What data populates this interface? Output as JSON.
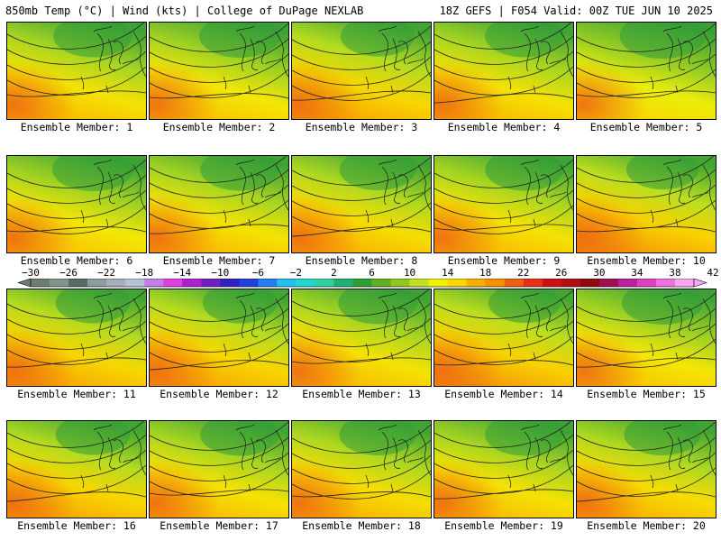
{
  "header": {
    "title_left": "850mb Temp (°C) | Wind (kts) | College of DuPage NEXLAB",
    "title_right": "18Z GEFS | F054 Valid: 00Z TUE JUN 10 2025"
  },
  "panels": [
    {
      "caption": "Ensemble Member: 1",
      "warmth": 0.45
    },
    {
      "caption": "Ensemble Member: 2",
      "warmth": 0.4
    },
    {
      "caption": "Ensemble Member: 3",
      "warmth": 0.55
    },
    {
      "caption": "Ensemble Member: 4",
      "warmth": 0.45
    },
    {
      "caption": "Ensemble Member: 5",
      "warmth": 0.3
    },
    {
      "caption": "Ensemble Member: 6",
      "warmth": 0.4
    },
    {
      "caption": "Ensemble Member: 7",
      "warmth": 0.45
    },
    {
      "caption": "Ensemble Member: 8",
      "warmth": 0.5
    },
    {
      "caption": "Ensemble Member: 9",
      "warmth": 0.45
    },
    {
      "caption": "Ensemble Member: 10",
      "warmth": 0.6
    },
    {
      "caption": "Ensemble Member: 11",
      "warmth": 0.55
    },
    {
      "caption": "Ensemble Member: 12",
      "warmth": 0.55
    },
    {
      "caption": "Ensemble Member: 13",
      "warmth": 0.45
    },
    {
      "caption": "Ensemble Member: 14",
      "warmth": 0.6
    },
    {
      "caption": "Ensemble Member: 15",
      "warmth": 0.4
    },
    {
      "caption": "Ensemble Member: 16",
      "warmth": 0.55
    },
    {
      "caption": "Ensemble Member: 17",
      "warmth": 0.45
    },
    {
      "caption": "Ensemble Member: 18",
      "warmth": 0.5
    },
    {
      "caption": "Ensemble Member: 19",
      "warmth": 0.45
    },
    {
      "caption": "Ensemble Member: 20",
      "warmth": 0.5
    }
  ],
  "colorbar": {
    "labels": [
      "−30",
      "−26",
      "−22",
      "−18",
      "−14",
      "−10",
      "−6",
      "−2",
      "2",
      "6",
      "10",
      "14",
      "18",
      "22",
      "26",
      "30",
      "34",
      "38",
      "42"
    ],
    "colors": [
      "#6e7e6e",
      "#84948a",
      "#5a6a66",
      "#8d9d9d",
      "#a4aebb",
      "#b8c2d6",
      "#c080e8",
      "#e040e0",
      "#b020d0",
      "#7020c0",
      "#3020c0",
      "#2040e0",
      "#2080f0",
      "#20c0f0",
      "#20d8d0",
      "#30d0a0",
      "#20b070",
      "#30a030",
      "#60b020",
      "#90c820",
      "#c0e020",
      "#f0f000",
      "#f8d800",
      "#f8b000",
      "#f89000",
      "#f06010",
      "#e83018",
      "#d01010",
      "#b01010",
      "#900808",
      "#a01050",
      "#c020a0",
      "#e040c0",
      "#f070e0",
      "#f8a8f0"
    ]
  }
}
